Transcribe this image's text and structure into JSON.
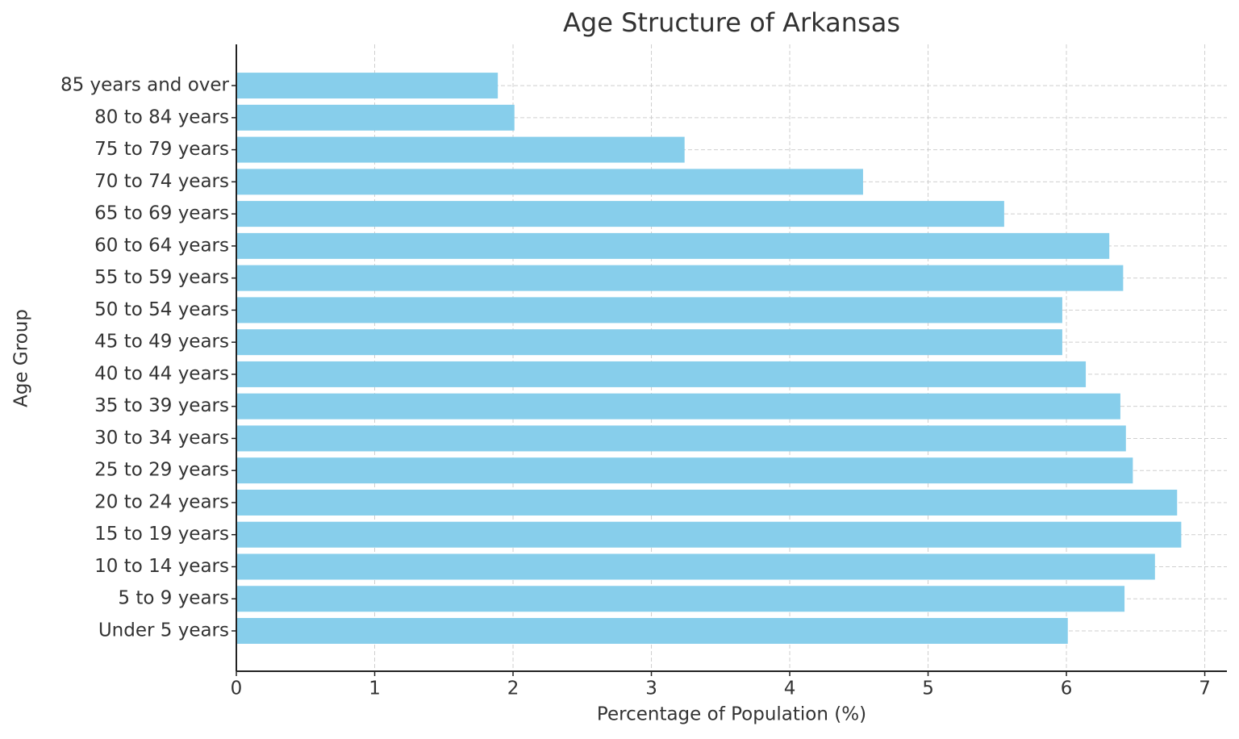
{
  "chart_data": {
    "type": "barh",
    "title": "Age Structure of Arkansas",
    "x_label": "Percentage of Population (%)",
    "y_label": "Age Group",
    "categories": [
      "Under 5 years",
      "5 to 9 years",
      "10 to 14 years",
      "15 to 19 years",
      "20 to 24 years",
      "25 to 29 years",
      "30 to 34 years",
      "35 to 39 years",
      "40 to 44 years",
      "45 to 49 years",
      "50 to 54 years",
      "55 to 59 years",
      "60 to 64 years",
      "65 to 69 years",
      "70 to 74 years",
      "75 to 79 years",
      "80 to 84 years",
      "85 years and over"
    ],
    "values": [
      6.01,
      6.42,
      6.64,
      6.83,
      6.8,
      6.48,
      6.43,
      6.39,
      6.14,
      5.97,
      5.97,
      6.41,
      6.31,
      5.55,
      4.53,
      3.24,
      2.01,
      1.89
    ],
    "color": "#87ceeb",
    "xlim": [
      0,
      7.16
    ],
    "xticks": [
      0,
      1,
      2,
      3,
      4,
      5,
      6,
      7
    ],
    "grid": true
  }
}
